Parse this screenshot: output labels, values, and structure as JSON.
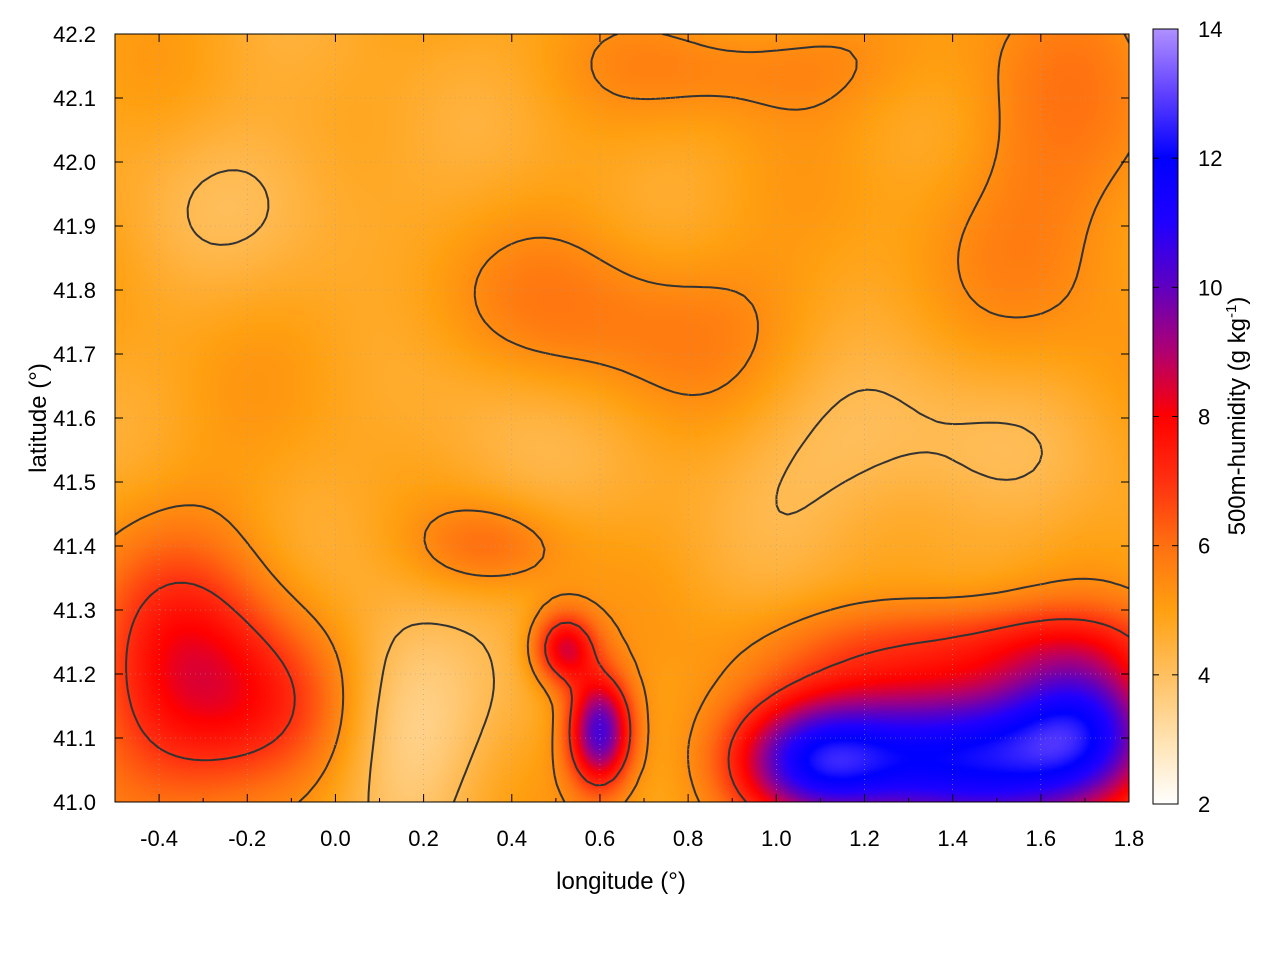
{
  "chart_data": {
    "type": "heatmap",
    "title": "",
    "xlabel": "longitude (°)",
    "ylabel": "latitude (°)",
    "colorbar_label_main": "500m-humidity (g kg",
    "colorbar_label_exp": "-1",
    "colorbar_label_close": ")",
    "xlim": [
      -0.5,
      1.8
    ],
    "ylim": [
      41.0,
      42.2
    ],
    "clim": [
      2,
      14
    ],
    "xticks": [
      {
        "value": -0.4,
        "label": "-0.4"
      },
      {
        "value": -0.2,
        "label": "-0.2"
      },
      {
        "value": 0.0,
        "label": "0.0"
      },
      {
        "value": 0.2,
        "label": "0.2"
      },
      {
        "value": 0.4,
        "label": "0.4"
      },
      {
        "value": 0.6,
        "label": "0.6"
      },
      {
        "value": 0.8,
        "label": "0.8"
      },
      {
        "value": 1.0,
        "label": "1.0"
      },
      {
        "value": 1.2,
        "label": "1.2"
      },
      {
        "value": 1.4,
        "label": "1.4"
      },
      {
        "value": 1.6,
        "label": "1.6"
      },
      {
        "value": 1.8,
        "label": "1.8"
      }
    ],
    "yticks": [
      {
        "value": 41.0,
        "label": "41.0"
      },
      {
        "value": 41.1,
        "label": "41.1"
      },
      {
        "value": 41.2,
        "label": "41.2"
      },
      {
        "value": 41.3,
        "label": "41.3"
      },
      {
        "value": 41.4,
        "label": "41.4"
      },
      {
        "value": 41.5,
        "label": "41.5"
      },
      {
        "value": 41.6,
        "label": "41.6"
      },
      {
        "value": 41.7,
        "label": "41.7"
      },
      {
        "value": 41.8,
        "label": "41.8"
      },
      {
        "value": 41.9,
        "label": "41.9"
      },
      {
        "value": 42.0,
        "label": "42.0"
      },
      {
        "value": 42.1,
        "label": "42.1"
      },
      {
        "value": 42.2,
        "label": "42.2"
      }
    ],
    "cticks": [
      {
        "value": 2,
        "label": "2"
      },
      {
        "value": 4,
        "label": "4"
      },
      {
        "value": 6,
        "label": "6"
      },
      {
        "value": 8,
        "label": "8"
      },
      {
        "value": 10,
        "label": "10"
      },
      {
        "value": 12,
        "label": "12"
      },
      {
        "value": 14,
        "label": "14"
      }
    ],
    "colormap": [
      {
        "value": 2,
        "color": "#ffffff"
      },
      {
        "value": 3,
        "color": "#ffe2b0"
      },
      {
        "value": 4,
        "color": "#ffc060"
      },
      {
        "value": 5,
        "color": "#ffa010"
      },
      {
        "value": 6,
        "color": "#ff7010"
      },
      {
        "value": 7,
        "color": "#ff3010"
      },
      {
        "value": 8,
        "color": "#ff0000"
      },
      {
        "value": 9,
        "color": "#b00070"
      },
      {
        "value": 10,
        "color": "#6000c0"
      },
      {
        "value": 11,
        "color": "#2000ff"
      },
      {
        "value": 12,
        "color": "#0000ff"
      },
      {
        "value": 13,
        "color": "#6040ff"
      },
      {
        "value": 14,
        "color": "#b090ff"
      }
    ],
    "field_background": 4.8,
    "field_features": [
      {
        "lon": 1.4,
        "lat": 41.07,
        "sx": 0.28,
        "sy": 0.09,
        "amp": 7.0
      },
      {
        "lon": 1.7,
        "lat": 41.12,
        "sx": 0.12,
        "sy": 0.08,
        "amp": 4.0
      },
      {
        "lon": 1.08,
        "lat": 41.06,
        "sx": 0.12,
        "sy": 0.06,
        "amp": 3.5
      },
      {
        "lon": 0.6,
        "lat": 41.11,
        "sx": 0.05,
        "sy": 0.06,
        "amp": 5.5
      },
      {
        "lon": 0.52,
        "lat": 41.24,
        "sx": 0.05,
        "sy": 0.04,
        "amp": 3.5
      },
      {
        "lon": -0.35,
        "lat": 41.2,
        "sx": 0.15,
        "sy": 0.15,
        "amp": 2.8
      },
      {
        "lon": -0.15,
        "lat": 41.15,
        "sx": 0.15,
        "sy": 0.1,
        "amp": 1.8
      },
      {
        "lon": 0.35,
        "lat": 41.4,
        "sx": 0.12,
        "sy": 0.05,
        "amp": 1.2
      },
      {
        "lon": 0.6,
        "lat": 41.75,
        "sx": 0.35,
        "sy": 0.1,
        "amp": 1.0
      },
      {
        "lon": 0.95,
        "lat": 42.15,
        "sx": 0.25,
        "sy": 0.06,
        "amp": 0.9
      },
      {
        "lon": 1.65,
        "lat": 42.0,
        "sx": 0.18,
        "sy": 0.2,
        "amp": 1.0
      },
      {
        "lon": 1.5,
        "lat": 41.25,
        "sx": 0.3,
        "sy": 0.05,
        "amp": 1.8
      },
      {
        "lon": 0.15,
        "lat": 41.12,
        "sx": 0.12,
        "sy": 0.12,
        "amp": -1.6
      },
      {
        "lon": 0.35,
        "lat": 41.6,
        "sx": 0.15,
        "sy": 0.12,
        "amp": -0.6
      },
      {
        "lon": 1.25,
        "lat": 41.55,
        "sx": 0.25,
        "sy": 0.1,
        "amp": -0.9
      },
      {
        "lon": -0.1,
        "lat": 41.95,
        "sx": 0.2,
        "sy": 0.1,
        "amp": -0.6
      }
    ],
    "contour_levels": [
      4.2,
      5.4,
      7.0
    ]
  }
}
